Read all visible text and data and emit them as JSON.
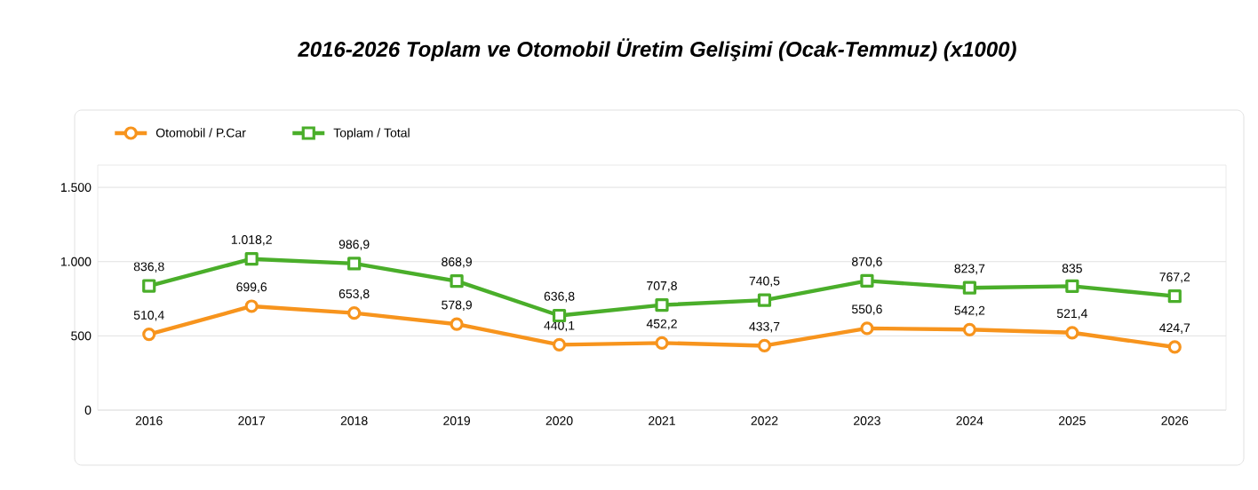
{
  "chart_data": {
    "type": "line",
    "title": "2016-2026 Toplam ve Otomobil Üretim Gelişimi (Ocak-Temmuz) (x1000)",
    "categories": [
      "2016",
      "2017",
      "2018",
      "2019",
      "2020",
      "2021",
      "2022",
      "2023",
      "2024",
      "2025",
      "2026"
    ],
    "series": [
      {
        "name": "Otomobil / P.Car",
        "color": "#f7941d",
        "marker": "circle",
        "values": [
          510.4,
          699.6,
          653.8,
          578.9,
          440.1,
          452.2,
          433.7,
          550.6,
          542.2,
          521.4,
          424.7
        ],
        "value_labels": [
          "510,4",
          "699,6",
          "653,8",
          "578,9",
          "440,1",
          "452,2",
          "433,7",
          "550,6",
          "542,2",
          "521,4",
          "424,7"
        ]
      },
      {
        "name": "Toplam / Total",
        "color": "#4aae2a",
        "marker": "square",
        "values": [
          836.8,
          1018.2,
          986.9,
          868.9,
          636.8,
          707.8,
          740.5,
          870.6,
          823.7,
          835,
          767.2
        ],
        "value_labels": [
          "836,8",
          "1.018,2",
          "986,9",
          "868,9",
          "636,8",
          "707,8",
          "740,5",
          "870,6",
          "823,7",
          "835",
          "767,2"
        ]
      }
    ],
    "ylim": [
      0,
      1650
    ],
    "yticks": [
      0,
      500,
      {
        "value": 1000,
        "label": "1.000"
      },
      {
        "value": 1500,
        "label": "1.500"
      }
    ],
    "grid": "y",
    "legend": "top left",
    "line_style": "solid"
  }
}
